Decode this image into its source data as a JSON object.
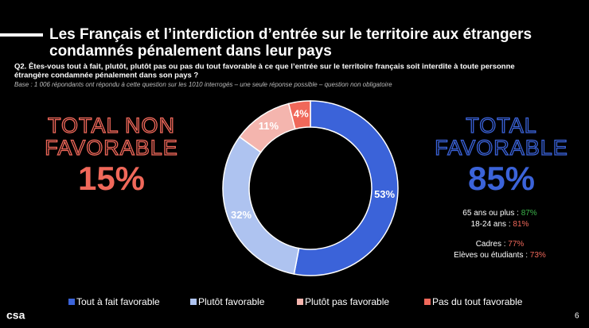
{
  "title": "Les Français et l’interdiction d’entrée sur le territoire aux étrangers condamnés pénalement dans leur pays",
  "question": [
    "Q2. Êtes-vous tout à fait, plutôt, plutôt pas ou pas du tout favorable à ce que l’entrée sur le territoire français soit interdite à toute personne",
    "étrangère condamnée pénalement dans son pays ?"
  ],
  "base": "Base : 1 006 répondants ont répondu à cette question sur les 1010 interrogés – une seule réponse possible – question non obligatoire",
  "left": {
    "heading": [
      "TOTAL NON",
      "FAVORABLE"
    ],
    "total": "15%"
  },
  "right": {
    "heading": [
      "TOTAL",
      "FAVORABLE"
    ],
    "total": "85%"
  },
  "highlights": [
    {
      "label": "65 ans ou plus : ",
      "value": "87%",
      "color": "#3cb44b"
    },
    {
      "label": "18-24 ans : ",
      "value": "81%",
      "color": "#f0685a"
    },
    {
      "label": "Cadres : ",
      "value": "77%",
      "color": "#f0685a"
    },
    {
      "label": "Elèves ou étudiants : ",
      "value": "73%",
      "color": "#f0685a"
    }
  ],
  "logo": "csa",
  "page": "6",
  "chart_data": {
    "type": "donut",
    "categories": [
      "Tout à fait favorable",
      "Plutôt favorable",
      "Plutôt pas favorable",
      "Pas du tout favorable"
    ],
    "values": [
      53,
      32,
      11,
      4
    ],
    "value_labels": [
      "53%",
      "32%",
      "11%",
      "4%"
    ],
    "colors": [
      "#3b63d9",
      "#aec3f0",
      "#f4b5ae",
      "#f0685a"
    ],
    "legend": "bottom"
  }
}
